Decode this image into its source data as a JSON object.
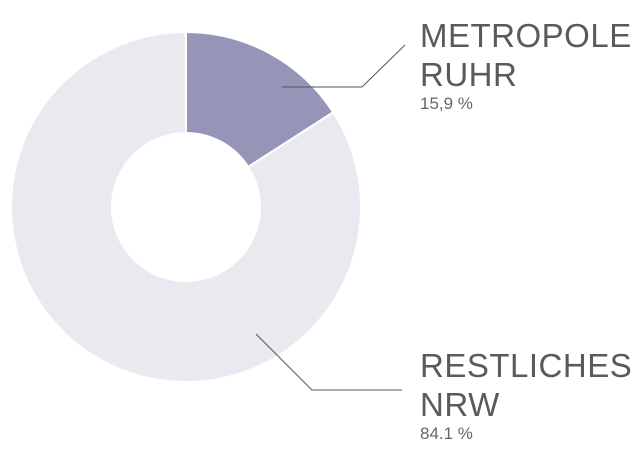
{
  "chart_data": {
    "type": "donut",
    "categories": [
      "METROPOLE RUHR",
      "RESTLICHES NRW"
    ],
    "values": [
      15.9,
      84.1
    ],
    "value_labels": [
      "15,9 %",
      "84.1 %"
    ],
    "colors": [
      "#9595b7",
      "#eae9ef"
    ]
  }
}
